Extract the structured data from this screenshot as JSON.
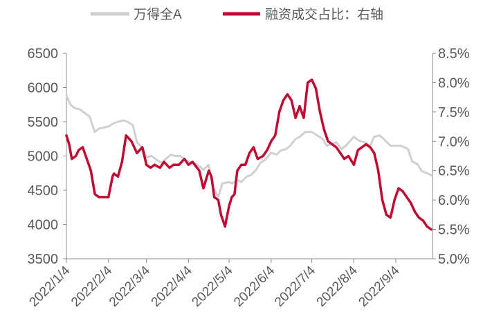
{
  "chart_data": {
    "type": "line",
    "legend": {
      "placement": "top-center",
      "items": [
        {
          "label": "万得全A",
          "color": "#d0d0d0"
        },
        {
          "label": "融资成交占比：右轴",
          "color": "#c00a32"
        }
      ]
    },
    "x_ticks": [
      "2022/1/4",
      "2022/2/4",
      "2022/3/4",
      "2022/4/4",
      "2022/5/4",
      "2022/6/4",
      "2022/7/4",
      "2022/8/4",
      "2022/9/4"
    ],
    "y_left": {
      "ticks": [
        "6500",
        "6000",
        "5500",
        "5000",
        "4500",
        "4000",
        "3500"
      ],
      "range": [
        3500,
        6500
      ]
    },
    "y_right": {
      "ticks": [
        "8.5%",
        "8.0%",
        "7.5%",
        "7.0%",
        "6.5%",
        "6.0%",
        "5.5%",
        "5.0%"
      ],
      "range": [
        5.0,
        8.5
      ]
    },
    "grid": false,
    "series": [
      {
        "name": "万得全A",
        "axis": "left",
        "color": "#d0d0d0",
        "x": [
          "2022-01-04",
          "2022-01-07",
          "2022-01-10",
          "2022-01-14",
          "2022-01-18",
          "2022-01-21",
          "2022-01-25",
          "2022-01-28",
          "2022-02-04",
          "2022-02-08",
          "2022-02-11",
          "2022-02-15",
          "2022-02-18",
          "2022-02-22",
          "2022-02-25",
          "2022-03-01",
          "2022-03-04",
          "2022-03-08",
          "2022-03-11",
          "2022-03-15",
          "2022-03-18",
          "2022-03-22",
          "2022-03-25",
          "2022-03-29",
          "2022-04-01",
          "2022-04-04",
          "2022-04-08",
          "2022-04-12",
          "2022-04-15",
          "2022-04-19",
          "2022-04-22",
          "2022-04-26",
          "2022-04-29",
          "2022-05-04",
          "2022-05-06",
          "2022-05-10",
          "2022-05-13",
          "2022-05-17",
          "2022-05-20",
          "2022-05-24",
          "2022-05-27",
          "2022-05-31",
          "2022-06-04",
          "2022-06-08",
          "2022-06-11",
          "2022-06-15",
          "2022-06-18",
          "2022-06-22",
          "2022-06-25",
          "2022-06-29",
          "2022-07-04",
          "2022-07-08",
          "2022-07-12",
          "2022-07-15",
          "2022-07-19",
          "2022-07-22",
          "2022-07-26",
          "2022-07-29",
          "2022-08-04",
          "2022-08-08",
          "2022-08-12",
          "2022-08-16",
          "2022-08-19",
          "2022-08-23",
          "2022-08-26",
          "2022-08-31",
          "2022-09-04",
          "2022-09-08",
          "2022-09-13",
          "2022-09-16",
          "2022-09-20",
          "2022-09-23",
          "2022-09-27",
          "2022-09-30"
        ],
        "values": [
          5880,
          5750,
          5700,
          5680,
          5620,
          5580,
          5350,
          5400,
          5430,
          5480,
          5500,
          5520,
          5500,
          5450,
          5200,
          5120,
          4980,
          5000,
          4950,
          4900,
          4950,
          5020,
          5000,
          5000,
          4950,
          4920,
          4900,
          4850,
          4800,
          4870,
          4550,
          4400,
          4600,
          4620,
          4600,
          4650,
          4620,
          4700,
          4720,
          4800,
          4900,
          4950,
          5050,
          5020,
          5080,
          5100,
          5150,
          5250,
          5280,
          5350,
          5350,
          5300,
          5250,
          5150,
          5180,
          5200,
          5100,
          5150,
          5280,
          5220,
          5200,
          5150,
          5280,
          5300,
          5250,
          5150,
          5150,
          5150,
          5100,
          4920,
          4880,
          4780,
          4750,
          4720
        ]
      },
      {
        "name": "融资成交占比：右轴",
        "axis": "right",
        "color": "#c00a32",
        "x": [
          "2022-01-04",
          "2022-01-06",
          "2022-01-08",
          "2022-01-11",
          "2022-01-13",
          "2022-01-16",
          "2022-01-19",
          "2022-01-22",
          "2022-01-25",
          "2022-01-28",
          "2022-01-30",
          "2022-02-01",
          "2022-02-04",
          "2022-02-07",
          "2022-02-08",
          "2022-02-11",
          "2022-02-14",
          "2022-02-17",
          "2022-02-21",
          "2022-02-25",
          "2022-03-01",
          "2022-03-04",
          "2022-03-07",
          "2022-03-10",
          "2022-03-14",
          "2022-03-17",
          "2022-03-21",
          "2022-03-24",
          "2022-03-28",
          "2022-04-01",
          "2022-04-04",
          "2022-04-07",
          "2022-04-12",
          "2022-04-15",
          "2022-04-19",
          "2022-04-21",
          "2022-04-23",
          "2022-04-26",
          "2022-04-28",
          "2022-05-01",
          "2022-05-04",
          "2022-05-06",
          "2022-05-08",
          "2022-05-10",
          "2022-05-13",
          "2022-05-16",
          "2022-05-19",
          "2022-05-22",
          "2022-05-25",
          "2022-05-29",
          "2022-06-01",
          "2022-06-04",
          "2022-06-07",
          "2022-06-10",
          "2022-06-13",
          "2022-06-16",
          "2022-06-19",
          "2022-06-22",
          "2022-06-25",
          "2022-06-28",
          "2022-07-01",
          "2022-07-04",
          "2022-07-07",
          "2022-07-10",
          "2022-07-13",
          "2022-07-16",
          "2022-07-19",
          "2022-07-22",
          "2022-07-25",
          "2022-07-28",
          "2022-07-31",
          "2022-08-04",
          "2022-08-07",
          "2022-08-10",
          "2022-08-13",
          "2022-08-16",
          "2022-08-19",
          "2022-08-22",
          "2022-08-25",
          "2022-08-28",
          "2022-08-31",
          "2022-09-03",
          "2022-09-06",
          "2022-09-09",
          "2022-09-12",
          "2022-09-15",
          "2022-09-18",
          "2022-09-21",
          "2022-09-24",
          "2022-09-27",
          "2022-09-30"
        ],
        "values": [
          7.1,
          6.95,
          6.7,
          6.75,
          6.85,
          6.9,
          6.7,
          6.5,
          6.1,
          6.05,
          6.05,
          6.05,
          6.05,
          6.4,
          6.45,
          6.4,
          6.65,
          7.1,
          7.0,
          6.8,
          6.9,
          6.6,
          6.55,
          6.6,
          6.55,
          6.65,
          6.55,
          6.6,
          6.6,
          6.7,
          6.6,
          6.65,
          6.5,
          6.2,
          6.5,
          6.4,
          6.05,
          6.0,
          5.75,
          5.55,
          5.9,
          6.05,
          6.1,
          6.5,
          6.6,
          6.6,
          6.8,
          6.9,
          6.7,
          6.75,
          6.85,
          7.0,
          7.1,
          7.5,
          7.7,
          7.8,
          7.7,
          7.4,
          7.6,
          7.4,
          8.0,
          8.05,
          7.9,
          7.5,
          7.2,
          7.0,
          6.95,
          6.9,
          6.8,
          6.7,
          6.75,
          6.6,
          6.85,
          6.9,
          6.95,
          6.9,
          6.8,
          6.5,
          6.0,
          5.75,
          5.7,
          6.0,
          6.2,
          6.15,
          6.05,
          5.95,
          5.8,
          5.7,
          5.65,
          5.55,
          5.5
        ]
      }
    ]
  }
}
